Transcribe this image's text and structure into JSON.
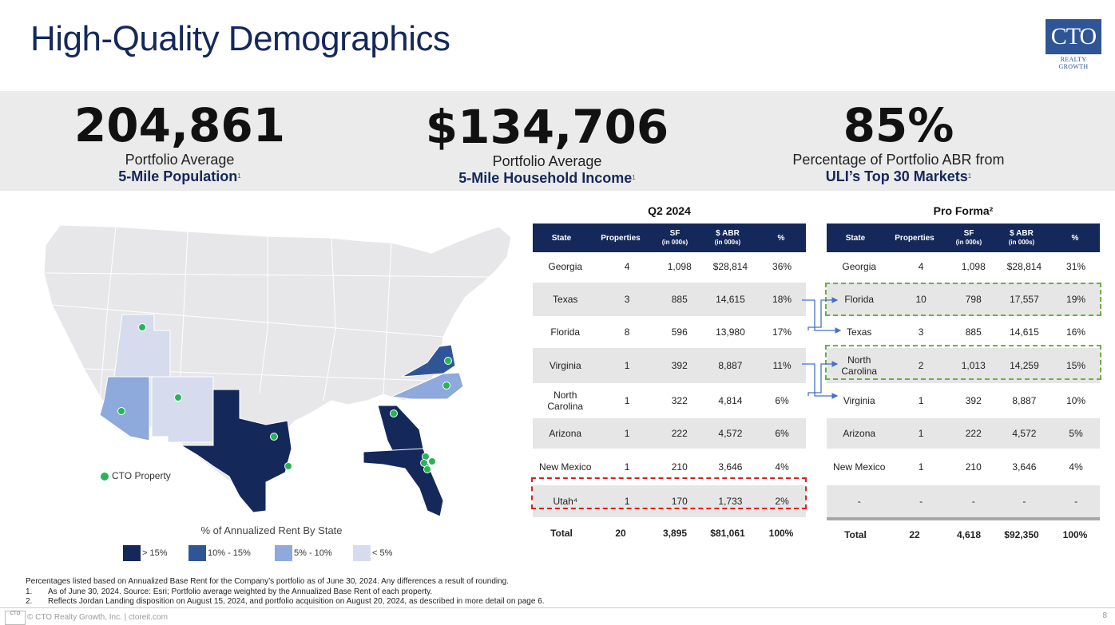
{
  "title": "High-Quality Demographics",
  "logo": {
    "main": "CTO",
    "sub": "REALTY GROWTH"
  },
  "stats": [
    {
      "value": "204,861",
      "line1": "Portfolio Average",
      "line2": "5-Mile Population",
      "note": "1"
    },
    {
      "value": "$134,706",
      "line1": "Portfolio Average",
      "line2": "5-Mile Household Income",
      "note": "1"
    },
    {
      "value": "85%",
      "line1": "Percentage of Portfolio ABR from",
      "line2": "ULI’s Top 30 Markets",
      "note": "1"
    }
  ],
  "map": {
    "property_label": "CTO Property",
    "legend_title": "% of Annualized Rent By State",
    "legend": [
      {
        "label": "> 15%",
        "color": "#14285a"
      },
      {
        "label": "10% - 15%",
        "color": "#2f5597"
      },
      {
        "label": "5% - 10%",
        "color": "#8ea9db"
      },
      {
        "label": "< 5%",
        "color": "#d6dcee"
      }
    ]
  },
  "q2": {
    "title": "Q2 2024",
    "headers": {
      "state": "State",
      "properties": "Properties",
      "sf": "SF",
      "sf_sub": "(in 000s)",
      "abr": "$ ABR",
      "abr_sub": "(in 000s)",
      "pct": "%"
    },
    "rows": [
      {
        "state": "Georgia",
        "properties": "4",
        "sf": "1,098",
        "abr": "$28,814",
        "pct": "36%"
      },
      {
        "state": "Texas",
        "properties": "3",
        "sf": "885",
        "abr": "14,615",
        "pct": "18%"
      },
      {
        "state": "Florida",
        "properties": "8",
        "sf": "596",
        "abr": "13,980",
        "pct": "17%"
      },
      {
        "state": "Virginia",
        "properties": "1",
        "sf": "392",
        "abr": "8,887",
        "pct": "11%"
      },
      {
        "state": "North Carolina",
        "properties": "1",
        "sf": "322",
        "abr": "4,814",
        "pct": "6%"
      },
      {
        "state": "Arizona",
        "properties": "1",
        "sf": "222",
        "abr": "4,572",
        "pct": "6%"
      },
      {
        "state": "New Mexico",
        "properties": "1",
        "sf": "210",
        "abr": "3,646",
        "pct": "4%"
      },
      {
        "state": "Utah⁴",
        "properties": "1",
        "sf": "170",
        "abr": "1,733",
        "pct": "2%"
      }
    ],
    "total": {
      "state": "Total",
      "properties": "20",
      "sf": "3,895",
      "abr": "$81,061",
      "pct": "100%"
    }
  },
  "pro": {
    "title": "Pro Forma²",
    "headers": {
      "state": "State",
      "properties": "Properties",
      "sf": "SF",
      "sf_sub": "(in 000s)",
      "abr": "$ ABR",
      "abr_sub": "(in 000s)",
      "pct": "%"
    },
    "rows": [
      {
        "state": "Georgia",
        "properties": "4",
        "sf": "1,098",
        "abr": "$28,814",
        "pct": "31%"
      },
      {
        "state": "Florida",
        "properties": "10",
        "sf": "798",
        "abr": "17,557",
        "pct": "19%"
      },
      {
        "state": "Texas",
        "properties": "3",
        "sf": "885",
        "abr": "14,615",
        "pct": "16%"
      },
      {
        "state": "North Carolina",
        "properties": "2",
        "sf": "1,013",
        "abr": "14,259",
        "pct": "15%"
      },
      {
        "state": "Virginia",
        "properties": "1",
        "sf": "392",
        "abr": "8,887",
        "pct": "10%"
      },
      {
        "state": "Arizona",
        "properties": "1",
        "sf": "222",
        "abr": "4,572",
        "pct": "5%"
      },
      {
        "state": "New Mexico",
        "properties": "1",
        "sf": "210",
        "abr": "3,646",
        "pct": "4%"
      },
      {
        "state": "-",
        "properties": "-",
        "sf": "-",
        "abr": "-",
        "pct": "-"
      }
    ],
    "total": {
      "state": "Total",
      "properties": "22",
      "sf": "4,618",
      "abr": "$92,350",
      "pct": "100%"
    }
  },
  "notes": {
    "intro": "Percentages listed based on Annualized Base Rent for the Company’s portfolio as of June 30, 2024. Any differences a result of rounding.",
    "items": [
      {
        "num": "1.",
        "text": "As of June 30, 2024. Source: Esri; Portfolio average weighted by the Annualized Base Rent of each property."
      },
      {
        "num": "2.",
        "text": "Reflects Jordan Landing disposition on August 15, 2024, and portfolio acquisition on August 20, 2024, as described in more detail on page 6."
      }
    ]
  },
  "footer": {
    "logo": "CTO",
    "text": "© CTO Realty Growth, Inc. | ctoreit.com",
    "page": "8"
  }
}
